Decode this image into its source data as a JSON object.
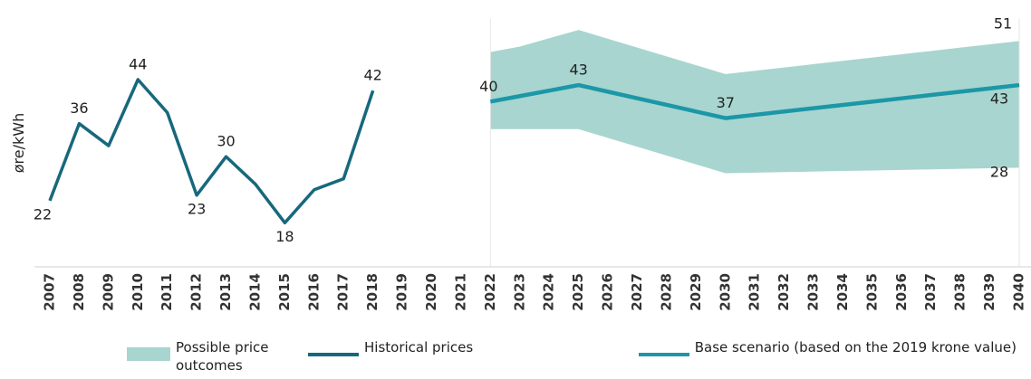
{
  "chart_data": {
    "type": "line",
    "y_label": "øre/kWh",
    "categories": [
      "2007",
      "2008",
      "2009",
      "2010",
      "2011",
      "2012",
      "2013",
      "2014",
      "2015",
      "2016",
      "2017",
      "2018",
      "2019",
      "2020",
      "2021",
      "2022",
      "2023",
      "2024",
      "2025",
      "2026",
      "2027",
      "2028",
      "2029",
      "2030",
      "2031",
      "2032",
      "2033",
      "2034",
      "2035",
      "2036",
      "2037",
      "2038",
      "2039",
      "2040"
    ],
    "ylim": [
      10,
      55
    ],
    "band": {
      "name": "Possible price outcomes",
      "color": "#a8d5cf",
      "upper": [
        null,
        null,
        null,
        null,
        null,
        null,
        null,
        null,
        null,
        null,
        null,
        null,
        null,
        null,
        null,
        49,
        50,
        51.5,
        53,
        51.4,
        49.8,
        48.2,
        46.6,
        45,
        45.6,
        46.2,
        46.8,
        47.4,
        48,
        48.6,
        49.2,
        49.8,
        50.4,
        51
      ],
      "lower": [
        null,
        null,
        null,
        null,
        null,
        null,
        null,
        null,
        null,
        null,
        null,
        null,
        null,
        null,
        null,
        35,
        35,
        35,
        35,
        33.4,
        31.8,
        30.2,
        28.6,
        27,
        27.1,
        27.2,
        27.3,
        27.4,
        27.5,
        27.6,
        27.7,
        27.8,
        27.9,
        28
      ],
      "upper_labels": [
        null,
        null,
        null,
        null,
        null,
        null,
        null,
        null,
        null,
        null,
        null,
        null,
        null,
        null,
        null,
        null,
        null,
        null,
        null,
        null,
        null,
        null,
        null,
        null,
        null,
        null,
        null,
        null,
        null,
        null,
        null,
        null,
        null,
        "51"
      ],
      "lower_labels": [
        null,
        null,
        null,
        null,
        null,
        null,
        null,
        null,
        null,
        null,
        null,
        null,
        null,
        null,
        null,
        null,
        null,
        null,
        null,
        null,
        null,
        null,
        null,
        null,
        null,
        null,
        null,
        null,
        null,
        null,
        null,
        null,
        null,
        "28"
      ]
    },
    "series": [
      {
        "name": "Historical prices",
        "color": "#17687c",
        "values": [
          22,
          36,
          32,
          44,
          38,
          23,
          30,
          25,
          18,
          24,
          26,
          42,
          null,
          null,
          null,
          null,
          null,
          null,
          null,
          null,
          null,
          null,
          null,
          null,
          null,
          null,
          null,
          null,
          null,
          null,
          null,
          null,
          null,
          null
        ],
        "value_labels": [
          "22",
          "36",
          null,
          "44",
          null,
          "23",
          "30",
          null,
          "18",
          null,
          null,
          "42",
          null,
          null,
          null,
          null,
          null,
          null,
          null,
          null,
          null,
          null,
          null,
          null,
          null,
          null,
          null,
          null,
          null,
          null,
          null,
          null,
          null,
          null
        ]
      },
      {
        "name": "Base scenario (based on the 2019 krone value)",
        "color": "#1b97a8",
        "values": [
          null,
          null,
          null,
          null,
          null,
          null,
          null,
          null,
          null,
          null,
          null,
          null,
          null,
          null,
          null,
          40,
          41,
          42,
          43,
          41.8,
          40.6,
          39.4,
          38.2,
          37,
          37.6,
          38.2,
          38.8,
          39.4,
          40,
          40.6,
          41.2,
          41.8,
          42.4,
          43
        ],
        "value_labels": [
          null,
          null,
          null,
          null,
          null,
          null,
          null,
          null,
          null,
          null,
          null,
          null,
          null,
          null,
          null,
          "40",
          null,
          null,
          "43",
          null,
          null,
          null,
          null,
          "37",
          null,
          null,
          null,
          null,
          null,
          null,
          null,
          null,
          null,
          "43"
        ]
      }
    ]
  }
}
